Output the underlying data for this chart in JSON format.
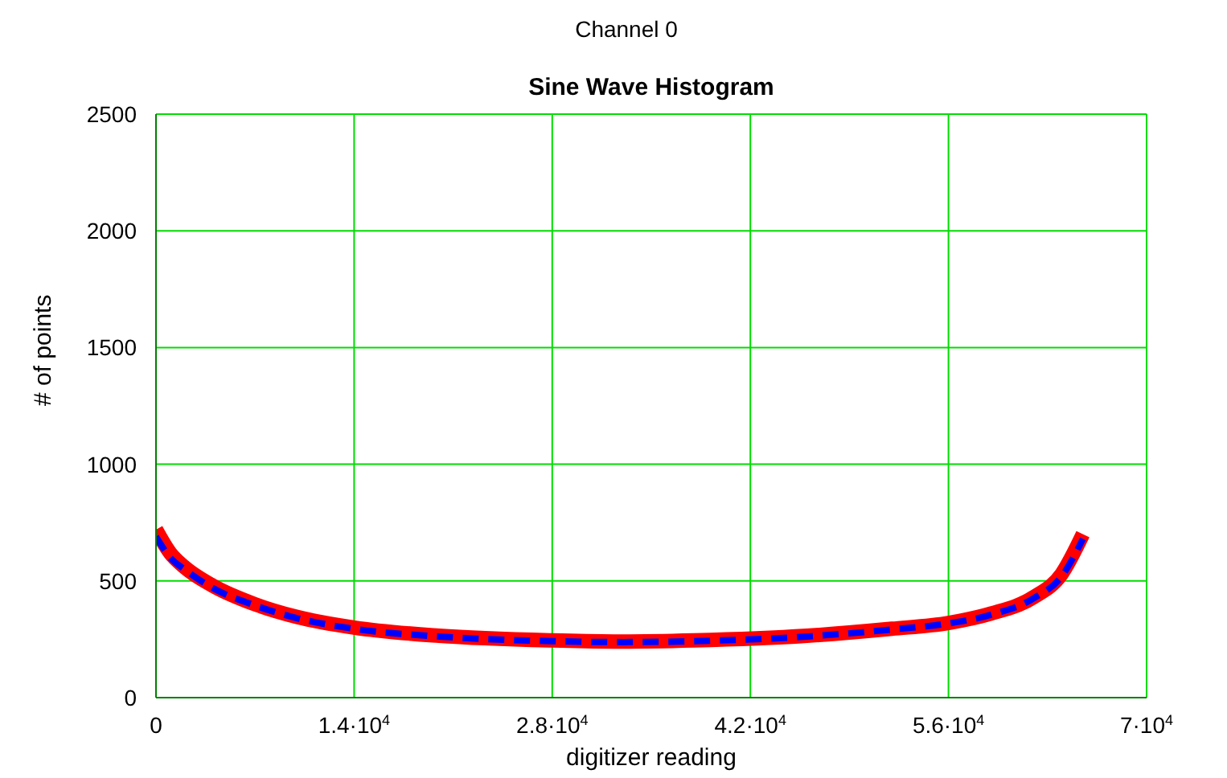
{
  "chart_data": {
    "type": "line",
    "title": "Channel 0",
    "subtitle": "Sine Wave Histogram",
    "xlabel": "digitizer reading",
    "ylabel": "# of points",
    "x": [
      0,
      1000,
      2000,
      4000,
      7000,
      10000,
      14000,
      20000,
      28000,
      33000,
      38000,
      46000,
      52000,
      56000,
      59000,
      62000,
      64000,
      65500
    ],
    "series": [
      {
        "color": "#ff0000",
        "values": [
          720,
          620,
          560,
          480,
          400,
          345,
          300,
          265,
          245,
          240,
          245,
          265,
          295,
          320,
          360,
          430,
          530,
          700
        ]
      },
      {
        "color": "#0000ff",
        "type": "line",
        "line_style": "dashed",
        "values": [
          690,
          600,
          550,
          470,
          395,
          340,
          295,
          262,
          242,
          238,
          242,
          262,
          292,
          318,
          355,
          425,
          520,
          680
        ]
      }
    ],
    "xlim": [
      0,
      70000
    ],
    "xticks": [
      0,
      {
        "value": 14000,
        "label": "1.4·10$^{4}$"
      },
      {
        "value": 28000,
        "label": "2.8·10$^{4}$"
      },
      {
        "value": 42000,
        "label": "4.2·10$^{4}$"
      },
      {
        "value": 56000,
        "label": "5.6·10$^{4}$"
      },
      {
        "value": 70000,
        "label": "7·10$^{4}$"
      }
    ],
    "ylim": [
      0,
      2500
    ],
    "yticks": [
      0,
      500,
      1000,
      1500,
      2000,
      2500
    ],
    "grid": true,
    "legend": false,
    "marker": "none"
  }
}
